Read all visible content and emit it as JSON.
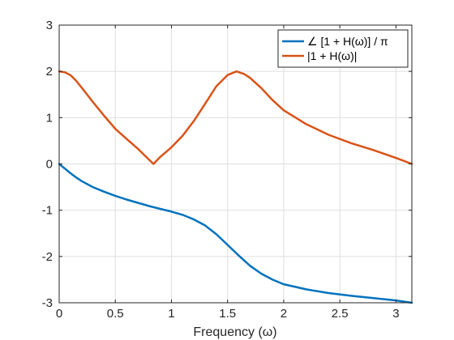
{
  "chart_data": {
    "type": "line",
    "title": "",
    "xlabel": "Frequency (ω)",
    "ylabel": "",
    "xlim": [
      0,
      3.1416
    ],
    "ylim": [
      -3,
      3
    ],
    "grid": true,
    "legend_position": "top-right",
    "x_ticks": [
      0,
      0.5,
      1,
      1.5,
      2,
      2.5,
      3
    ],
    "x_tick_labels": [
      "0",
      "0.5",
      "1",
      "1.5",
      "2",
      "2.5",
      "3"
    ],
    "y_ticks": [
      -3,
      -2,
      -1,
      0,
      1,
      2,
      3
    ],
    "y_tick_labels": [
      "-3",
      "-2",
      "-1",
      "0",
      "1",
      "2",
      "3"
    ],
    "series": [
      {
        "name": "∠ [1 + H(ω)] / π",
        "color": "#0072BD",
        "x": [
          0,
          0.05,
          0.1,
          0.15,
          0.2,
          0.3,
          0.4,
          0.5,
          0.6,
          0.7,
          0.8,
          0.9,
          1.0,
          1.1,
          1.2,
          1.3,
          1.4,
          1.5,
          1.6,
          1.7,
          1.8,
          1.9,
          2.0,
          2.2,
          2.4,
          2.6,
          2.8,
          3.0,
          3.1416
        ],
        "y": [
          0,
          -0.1,
          -0.2,
          -0.29,
          -0.37,
          -0.5,
          -0.6,
          -0.69,
          -0.77,
          -0.84,
          -0.91,
          -0.97,
          -1.03,
          -1.1,
          -1.2,
          -1.33,
          -1.52,
          -1.75,
          -1.98,
          -2.2,
          -2.37,
          -2.5,
          -2.6,
          -2.71,
          -2.79,
          -2.85,
          -2.9,
          -2.95,
          -3.0
        ]
      },
      {
        "name": "|1 + H(ω)|",
        "color": "#D95319",
        "x": [
          0,
          0.05,
          0.1,
          0.15,
          0.2,
          0.3,
          0.4,
          0.5,
          0.6,
          0.7,
          0.78,
          0.84,
          0.9,
          1.0,
          1.1,
          1.2,
          1.3,
          1.4,
          1.5,
          1.58,
          1.65,
          1.7,
          1.8,
          1.9,
          2.0,
          2.2,
          2.4,
          2.6,
          2.8,
          3.0,
          3.1416
        ],
        "y": [
          2.0,
          1.98,
          1.92,
          1.8,
          1.65,
          1.34,
          1.04,
          0.76,
          0.54,
          0.33,
          0.14,
          0.0,
          0.15,
          0.36,
          0.61,
          0.93,
          1.3,
          1.68,
          1.92,
          2.0,
          1.94,
          1.86,
          1.64,
          1.38,
          1.16,
          0.86,
          0.63,
          0.45,
          0.3,
          0.13,
          0.0
        ]
      }
    ]
  }
}
